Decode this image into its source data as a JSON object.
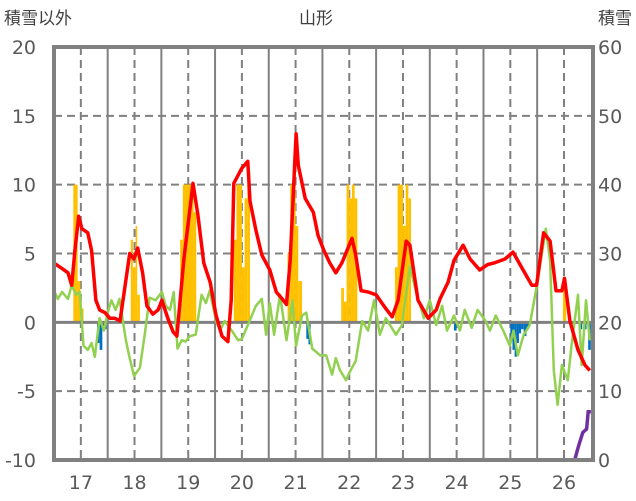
{
  "chart_data": {
    "type": "bar+line",
    "title": "山形",
    "ylabel_left": "積雪以外",
    "ylabel_right": "積雪",
    "ylim_left": [
      -10,
      20
    ],
    "ylim_right": [
      0,
      60
    ],
    "xlim": [
      16.5,
      26.54
    ],
    "left_ticks": [
      "20",
      "15",
      "10",
      "5",
      "0",
      "-5",
      "-10"
    ],
    "right_ticks": [
      "60",
      "50",
      "40",
      "30",
      "20",
      "10",
      "0"
    ],
    "x_ticks": [
      "17",
      "18",
      "19",
      "20",
      "21",
      "22",
      "23",
      "24",
      "25",
      "26"
    ],
    "grid": true,
    "colors": {
      "red": "#FF0000",
      "green": "#92D050",
      "orange": "#FFC000",
      "blue": "#0070C0",
      "purple": "#7030A0",
      "axis": "#808080"
    },
    "red_series": [
      [
        16.5,
        4.3
      ],
      [
        16.65,
        3.9
      ],
      [
        16.76,
        3.6
      ],
      [
        16.83,
        2.7
      ],
      [
        16.89,
        5.2
      ],
      [
        16.96,
        7.7
      ],
      [
        17.02,
        6.8
      ],
      [
        17.13,
        6.5
      ],
      [
        17.2,
        5.2
      ],
      [
        17.28,
        1.6
      ],
      [
        17.35,
        0.9
      ],
      [
        17.45,
        0.7
      ],
      [
        17.54,
        0.3
      ],
      [
        17.63,
        0.3
      ],
      [
        17.73,
        0.1
      ],
      [
        17.8,
        2.0
      ],
      [
        17.91,
        5.0
      ],
      [
        17.99,
        4.6
      ],
      [
        18.06,
        5.4
      ],
      [
        18.15,
        3.6
      ],
      [
        18.23,
        1.2
      ],
      [
        18.34,
        0.6
      ],
      [
        18.44,
        0.9
      ],
      [
        18.51,
        1.6
      ],
      [
        18.62,
        0.3
      ],
      [
        18.72,
        -0.7
      ],
      [
        18.79,
        -1.0
      ],
      [
        18.92,
        4.6
      ],
      [
        19.09,
        10.1
      ],
      [
        19.18,
        7.8
      ],
      [
        19.29,
        4.3
      ],
      [
        19.41,
        2.9
      ],
      [
        19.52,
        0.5
      ],
      [
        19.63,
        -1.0
      ],
      [
        19.74,
        -1.4
      ],
      [
        19.8,
        1.6
      ],
      [
        19.85,
        10.1
      ],
      [
        20.0,
        11.2
      ],
      [
        20.11,
        11.7
      ],
      [
        20.15,
        8.8
      ],
      [
        20.26,
        6.7
      ],
      [
        20.37,
        4.9
      ],
      [
        20.52,
        3.8
      ],
      [
        20.64,
        2.2
      ],
      [
        20.75,
        1.7
      ],
      [
        20.83,
        1.3
      ],
      [
        20.9,
        4.5
      ],
      [
        21.01,
        13.7
      ],
      [
        21.05,
        11.4
      ],
      [
        21.18,
        9.0
      ],
      [
        21.33,
        8.0
      ],
      [
        21.42,
        6.3
      ],
      [
        21.53,
        5.2
      ],
      [
        21.64,
        4.3
      ],
      [
        21.75,
        3.6
      ],
      [
        21.86,
        4.3
      ],
      [
        22.05,
        6.1
      ],
      [
        22.12,
        4.9
      ],
      [
        22.22,
        2.3
      ],
      [
        22.35,
        2.2
      ],
      [
        22.5,
        2.0
      ],
      [
        22.68,
        1.0
      ],
      [
        22.8,
        0.4
      ],
      [
        22.91,
        1.6
      ],
      [
        23.06,
        5.9
      ],
      [
        23.13,
        5.6
      ],
      [
        23.28,
        1.6
      ],
      [
        23.47,
        0.3
      ],
      [
        23.62,
        0.9
      ],
      [
        23.69,
        1.7
      ],
      [
        23.84,
        2.9
      ],
      [
        23.95,
        4.5
      ],
      [
        24.12,
        5.6
      ],
      [
        24.25,
        4.6
      ],
      [
        24.43,
        3.8
      ],
      [
        24.58,
        4.2
      ],
      [
        24.69,
        4.3
      ],
      [
        24.9,
        4.6
      ],
      [
        25.05,
        5.1
      ],
      [
        25.18,
        4.2
      ],
      [
        25.4,
        2.7
      ],
      [
        25.49,
        2.7
      ],
      [
        25.62,
        6.5
      ],
      [
        25.74,
        5.9
      ],
      [
        25.85,
        2.3
      ],
      [
        25.96,
        2.3
      ],
      [
        26.01,
        3.2
      ],
      [
        26.11,
        0.1
      ],
      [
        26.26,
        -2.0
      ],
      [
        26.39,
        -3.1
      ],
      [
        26.48,
        -3.5
      ]
    ],
    "green_series": [
      [
        16.5,
        2.3
      ],
      [
        16.57,
        1.7
      ],
      [
        16.65,
        2.2
      ],
      [
        16.76,
        1.7
      ],
      [
        16.83,
        2.7
      ],
      [
        16.91,
        2.0
      ],
      [
        16.98,
        2.2
      ],
      [
        17.05,
        -1.7
      ],
      [
        17.13,
        -2.0
      ],
      [
        17.2,
        -1.5
      ],
      [
        17.26,
        -2.5
      ],
      [
        17.35,
        0.3
      ],
      [
        17.43,
        -0.6
      ],
      [
        17.5,
        0.7
      ],
      [
        17.57,
        1.6
      ],
      [
        17.65,
        0.9
      ],
      [
        17.72,
        1.7
      ],
      [
        17.84,
        -1.3
      ],
      [
        17.91,
        -2.6
      ],
      [
        17.99,
        -3.9
      ],
      [
        18.1,
        -3.3
      ],
      [
        18.19,
        -0.9
      ],
      [
        18.28,
        1.8
      ],
      [
        18.39,
        1.6
      ],
      [
        18.51,
        2.2
      ],
      [
        18.58,
        1.2
      ],
      [
        18.66,
        0.9
      ],
      [
        18.73,
        2.2
      ],
      [
        18.8,
        -1.9
      ],
      [
        18.88,
        -1.3
      ],
      [
        18.95,
        -1.4
      ],
      [
        19.03,
        -1.0
      ],
      [
        19.14,
        -0.9
      ],
      [
        19.25,
        2.0
      ],
      [
        19.33,
        1.4
      ],
      [
        19.4,
        2.3
      ],
      [
        19.52,
        0.1
      ],
      [
        19.59,
        -0.6
      ],
      [
        19.68,
        0.1
      ],
      [
        19.81,
        -0.6
      ],
      [
        19.93,
        -1.3
      ],
      [
        20.0,
        -1.2
      ],
      [
        20.11,
        -0.2
      ],
      [
        20.26,
        1.2
      ],
      [
        20.37,
        1.7
      ],
      [
        20.45,
        -0.9
      ],
      [
        20.52,
        1.4
      ],
      [
        20.6,
        -0.9
      ],
      [
        20.71,
        2.0
      ],
      [
        20.83,
        -1.3
      ],
      [
        20.94,
        1.6
      ],
      [
        21.01,
        -1.7
      ],
      [
        21.12,
        0.5
      ],
      [
        21.2,
        0.7
      ],
      [
        21.31,
        -1.9
      ],
      [
        21.46,
        -2.4
      ],
      [
        21.57,
        -2.4
      ],
      [
        21.68,
        -3.8
      ],
      [
        21.75,
        -2.6
      ],
      [
        21.83,
        -3.5
      ],
      [
        21.94,
        -4.2
      ],
      [
        22.01,
        -3.6
      ],
      [
        22.12,
        -2.8
      ],
      [
        22.24,
        0.1
      ],
      [
        22.35,
        -0.6
      ],
      [
        22.46,
        1.6
      ],
      [
        22.57,
        -0.9
      ],
      [
        22.68,
        0.3
      ],
      [
        22.87,
        -0.9
      ],
      [
        22.98,
        -0.2
      ],
      [
        23.13,
        4.1
      ],
      [
        23.24,
        2.3
      ],
      [
        23.39,
        0.3
      ],
      [
        23.5,
        1.6
      ],
      [
        23.62,
        -0.2
      ],
      [
        23.73,
        1.2
      ],
      [
        23.82,
        -0.6
      ],
      [
        23.95,
        0.5
      ],
      [
        24.06,
        -0.6
      ],
      [
        24.15,
        0.9
      ],
      [
        24.28,
        -0.4
      ],
      [
        24.39,
        0.9
      ],
      [
        24.54,
        0.1
      ],
      [
        24.62,
        -0.6
      ],
      [
        24.73,
        0.5
      ],
      [
        24.88,
        -0.7
      ],
      [
        24.99,
        -1.7
      ],
      [
        25.06,
        -0.6
      ],
      [
        25.14,
        -2.4
      ],
      [
        25.25,
        -0.9
      ],
      [
        25.36,
        -0.2
      ],
      [
        25.51,
        3.0
      ],
      [
        25.66,
        6.8
      ],
      [
        25.74,
        4.5
      ],
      [
        25.81,
        -3.5
      ],
      [
        25.88,
        -6.0
      ],
      [
        25.96,
        -3.1
      ],
      [
        26.07,
        -4.2
      ],
      [
        26.14,
        -1.7
      ],
      [
        26.26,
        2.0
      ],
      [
        26.33,
        -3.1
      ],
      [
        26.41,
        1.6
      ],
      [
        26.48,
        -1.3
      ]
    ],
    "orange_bars": [
      [
        16.86,
        16.94,
        10
      ],
      [
        16.94,
        16.99,
        3
      ],
      [
        17.02,
        17.05,
        1
      ],
      [
        17.93,
        17.97,
        6
      ],
      [
        17.97,
        18.02,
        4
      ],
      [
        18.02,
        18.05,
        7
      ],
      [
        18.05,
        18.1,
        2
      ],
      [
        18.85,
        18.9,
        6
      ],
      [
        18.9,
        19.1,
        10
      ],
      [
        19.1,
        19.15,
        8
      ],
      [
        19.85,
        19.9,
        6
      ],
      [
        19.9,
        20.0,
        10
      ],
      [
        20.0,
        20.05,
        4
      ],
      [
        20.05,
        20.1,
        9
      ],
      [
        20.1,
        20.15,
        10
      ],
      [
        20.85,
        20.9,
        5
      ],
      [
        20.9,
        21.0,
        10
      ],
      [
        21.0,
        21.05,
        7
      ],
      [
        21.05,
        21.12,
        3
      ],
      [
        21.85,
        21.9,
        2.5
      ],
      [
        21.9,
        21.95,
        1.5
      ],
      [
        21.95,
        22.0,
        10
      ],
      [
        22.0,
        22.05,
        9
      ],
      [
        22.05,
        22.1,
        10
      ],
      [
        22.1,
        22.15,
        9
      ],
      [
        22.85,
        22.9,
        4
      ],
      [
        22.9,
        23.0,
        10
      ],
      [
        23.0,
        23.05,
        7
      ],
      [
        23.05,
        23.1,
        10
      ],
      [
        23.1,
        23.15,
        9
      ],
      [
        25.98,
        26.01,
        3
      ],
      [
        26.01,
        26.04,
        2
      ]
    ],
    "blue_bars": [
      [
        17.3,
        17.35,
        -1.5
      ],
      [
        17.35,
        17.4,
        -2
      ],
      [
        17.4,
        17.48,
        -0.5
      ],
      [
        21.2,
        21.24,
        -1.2
      ],
      [
        21.24,
        21.28,
        -1.6
      ],
      [
        23.95,
        24.0,
        -0.6
      ],
      [
        25.0,
        25.04,
        -1.2
      ],
      [
        25.04,
        25.08,
        -2.0
      ],
      [
        25.08,
        25.12,
        -2.5
      ],
      [
        25.12,
        25.16,
        -1.5
      ],
      [
        25.16,
        25.2,
        -0.8
      ],
      [
        25.2,
        25.25,
        -0.5
      ],
      [
        25.25,
        25.3,
        -1.0
      ],
      [
        25.3,
        25.35,
        -0.5
      ],
      [
        26.3,
        26.34,
        -0.5
      ],
      [
        26.38,
        26.42,
        -0.5
      ],
      [
        26.45,
        26.5,
        -2.0
      ]
    ],
    "purple_series_right": [
      [
        16.5,
        0
      ],
      [
        26.2,
        0
      ],
      [
        26.27,
        2
      ],
      [
        26.35,
        4
      ],
      [
        26.42,
        4.5
      ],
      [
        26.45,
        7
      ],
      [
        26.5,
        7
      ]
    ]
  }
}
